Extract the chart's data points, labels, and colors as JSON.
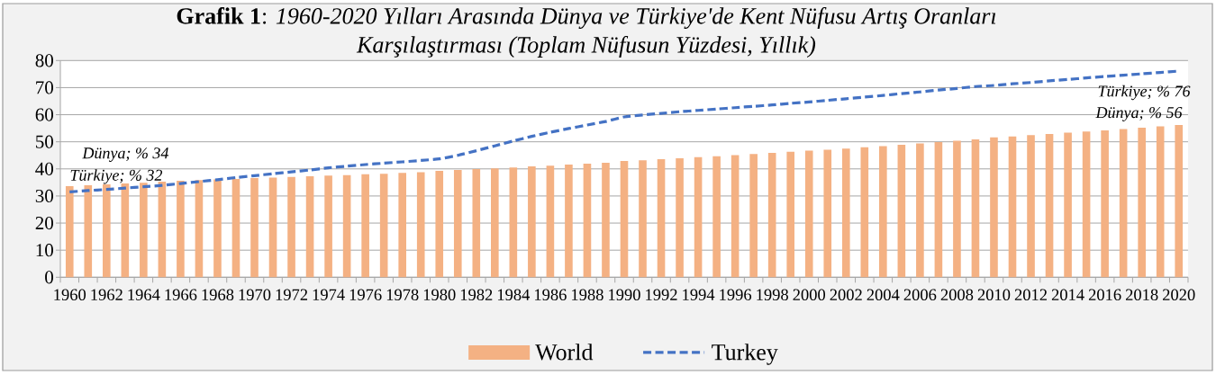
{
  "chart_data": {
    "type": "bar",
    "title": "**Grafik 1**: *1960-2020 Yılları Arasında Dünya ve Türkiye'de Kent Nüfusu Artış Oranları Karşılaştırması (Toplam Nüfusun Yüzdesi, Yıllık)*",
    "categories": [
      "1960",
      null,
      "1962",
      null,
      "1964",
      null,
      "1966",
      null,
      "1968",
      null,
      "1970",
      null,
      "1972",
      null,
      "1974",
      null,
      "1976",
      null,
      "1978",
      null,
      "1980",
      null,
      "1982",
      null,
      "1984",
      null,
      "1986",
      null,
      "1988",
      null,
      "1990",
      null,
      "1992",
      null,
      "1994",
      null,
      "1996",
      null,
      "1998",
      null,
      "2000",
      null,
      "2002",
      null,
      "2004",
      null,
      "2006",
      null,
      "2008",
      null,
      "2010",
      null,
      "2012",
      null,
      "2014",
      null,
      "2016",
      null,
      "2018",
      null,
      "2020"
    ],
    "series": [
      {
        "name": "World",
        "color": "#f4b183",
        "values": [
          33.6,
          34.0,
          34.3,
          34.6,
          34.9,
          35.3,
          35.6,
          35.9,
          36.1,
          36.3,
          36.6,
          36.8,
          37.0,
          37.3,
          37.5,
          37.7,
          38.0,
          38.2,
          38.5,
          38.8,
          39.3,
          39.6,
          39.9,
          40.2,
          40.5,
          40.9,
          41.2,
          41.6,
          41.9,
          42.3,
          42.9,
          43.2,
          43.6,
          43.9,
          44.3,
          44.7,
          45.1,
          45.5,
          45.9,
          46.3,
          46.7,
          47.1,
          47.5,
          48.0,
          48.4,
          48.9,
          49.4,
          49.9,
          50.4,
          50.9,
          51.6,
          52.0,
          52.5,
          52.9,
          53.4,
          53.8,
          54.2,
          54.7,
          55.2,
          55.7,
          56.2
        ]
      },
      {
        "name": "Turkey",
        "type": "line",
        "color": "#4472c4",
        "line_style": "dashed",
        "values": [
          31.5,
          32.0,
          32.4,
          32.9,
          33.4,
          33.9,
          34.6,
          35.3,
          36.0,
          36.8,
          37.5,
          38.2,
          38.9,
          39.6,
          40.4,
          41.0,
          41.6,
          42.1,
          42.6,
          43.1,
          43.7,
          45.0,
          46.7,
          48.5,
          50.3,
          52.0,
          53.5,
          54.9,
          56.2,
          57.5,
          59.2,
          59.9,
          60.5,
          61.1,
          61.6,
          62.1,
          62.6,
          63.1,
          63.6,
          64.2,
          64.7,
          65.3,
          65.9,
          66.5,
          67.1,
          67.8,
          68.4,
          69.1,
          69.7,
          70.4,
          70.8,
          71.4,
          71.9,
          72.5,
          73.0,
          73.6,
          74.1,
          74.6,
          75.1,
          75.6,
          76.1
        ]
      }
    ],
    "ylim": [
      0,
      80
    ],
    "yticks": [
      0,
      10,
      20,
      30,
      40,
      50,
      60,
      70,
      80
    ],
    "grid": "y",
    "legend": "bottom",
    "annotations": [
      {
        "text": "Dünya; % 34",
        "x": "1960",
        "y": 33.6
      },
      {
        "text": "Türkiye; % 32",
        "x": "1960",
        "y": 31.5
      },
      {
        "text": "Türkiye; % 76",
        "x": "2020",
        "y": 76.1
      },
      {
        "text": "Dünya; % 56",
        "x": "2020",
        "y": 56.2
      }
    ]
  }
}
